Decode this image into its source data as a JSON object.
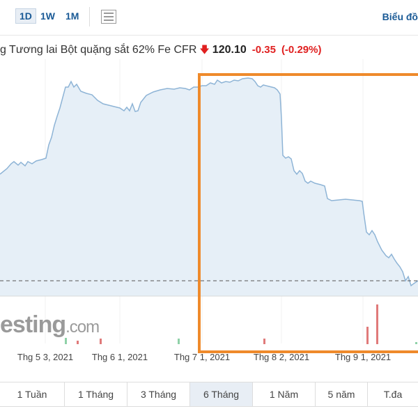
{
  "toolbar": {
    "timeframes": [
      "1D",
      "1W",
      "1M"
    ],
    "active_timeframe": "1D",
    "chart_type_icon": "table-icon",
    "chart_link": "Biểu đồ"
  },
  "quote": {
    "name": "g Tương lai Bột quặng sắt 62% Fe CFR",
    "arrow": "🡇",
    "price": "120.10",
    "change": "-0.35",
    "change_pct": "(-0.29%)"
  },
  "watermark": {
    "main": "esting",
    "suffix": ".com"
  },
  "chart_data": {
    "type": "area",
    "x_tick_labels": [
      "Thg 5 3, 2021",
      "Thg 6 1, 2021",
      "Thg 7 1, 2021",
      "Thg 8 2, 2021",
      "Thg 9 1, 2021"
    ],
    "line_color": "#8eb4d6",
    "fill_color": "#e6eff7",
    "reference_line": "dashed",
    "volume_bar_colors": [
      "#8fd1a8",
      "#e07a7a"
    ]
  },
  "ranges": {
    "items": [
      "1 Tuần",
      "1 Tháng",
      "3 Tháng",
      "6 Tháng",
      "1 Năm",
      "5 năm",
      "T.đa"
    ],
    "active": "6 Tháng"
  },
  "colors": {
    "accent": "#1a5a96",
    "negative": "#e02020",
    "highlight": "#ef8a2b"
  }
}
